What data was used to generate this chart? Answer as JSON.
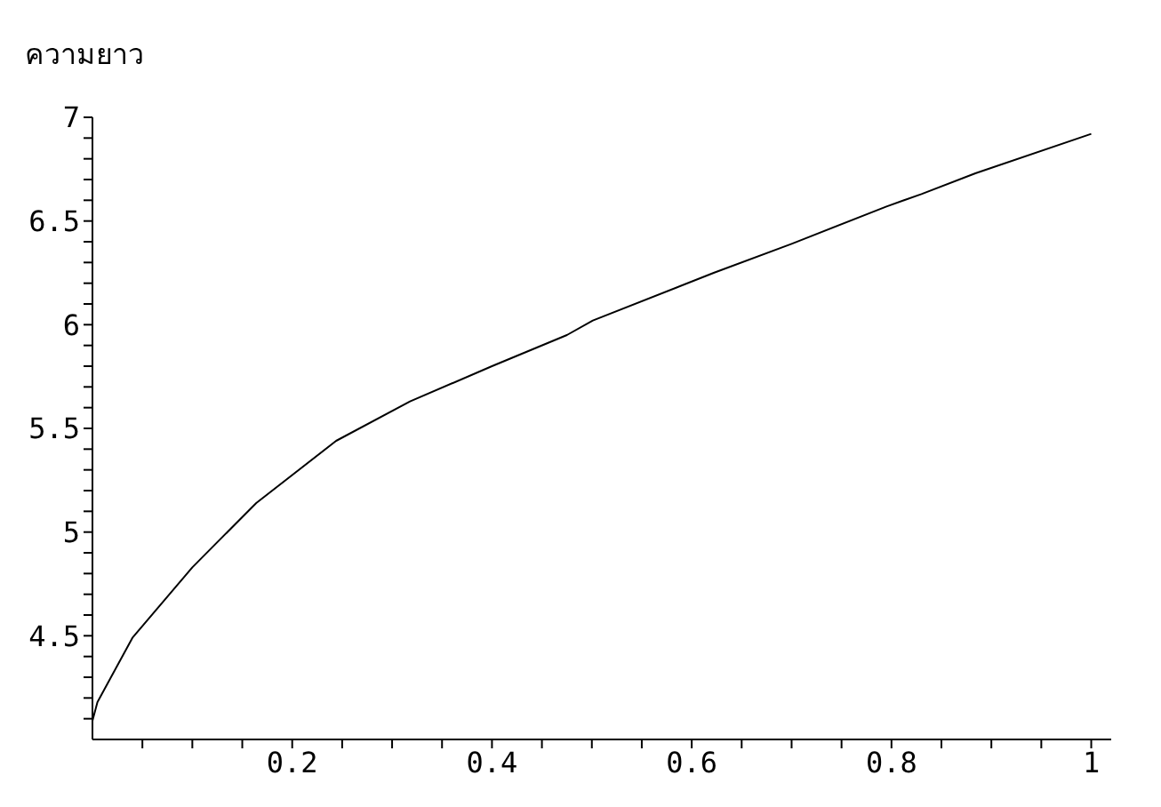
{
  "chart_data": {
    "type": "line",
    "ylabel": "ความยาว",
    "x": [
      0,
      0.005,
      0.04,
      0.1,
      0.164,
      0.244,
      0.318,
      0.4,
      0.475,
      0.501,
      0.622,
      0.7,
      0.795,
      0.83,
      0.884,
      1.0
    ],
    "series": [
      {
        "color": "#000000",
        "values": [
          4.09,
          4.18,
          4.49,
          4.83,
          5.14,
          5.44,
          5.63,
          5.8,
          5.95,
          6.02,
          6.25,
          6.39,
          6.57,
          6.63,
          6.73,
          6.92
        ]
      }
    ],
    "xlim": [
      0,
      1.02
    ],
    "ylim": [
      4,
      7
    ],
    "xticks": [
      {
        "value": 0.05,
        "label": null
      },
      {
        "value": 0.1,
        "label": null
      },
      {
        "value": 0.15,
        "label": null
      },
      0.2,
      {
        "value": 0.25,
        "label": null
      },
      {
        "value": 0.3,
        "label": null
      },
      {
        "value": 0.35,
        "label": null
      },
      0.4,
      {
        "value": 0.45,
        "label": null
      },
      {
        "value": 0.5,
        "label": null
      },
      {
        "value": 0.55,
        "label": null
      },
      0.6,
      {
        "value": 0.65,
        "label": null
      },
      {
        "value": 0.7,
        "label": null
      },
      {
        "value": 0.75,
        "label": null
      },
      0.8,
      {
        "value": 0.85,
        "label": null
      },
      {
        "value": 0.9,
        "label": null
      },
      {
        "value": 0.95,
        "label": null
      },
      1
    ],
    "yticks": [
      {
        "value": 4.1,
        "label": null
      },
      {
        "value": 4.2,
        "label": null
      },
      {
        "value": 4.3,
        "label": null
      },
      {
        "value": 4.4,
        "label": null
      },
      4.5,
      {
        "value": 4.6,
        "label": null
      },
      {
        "value": 4.7,
        "label": null
      },
      {
        "value": 4.8,
        "label": null
      },
      {
        "value": 4.9,
        "label": null
      },
      5,
      {
        "value": 5.1,
        "label": null
      },
      {
        "value": 5.2,
        "label": null
      },
      {
        "value": 5.3,
        "label": null
      },
      {
        "value": 5.4,
        "label": null
      },
      5.5,
      {
        "value": 5.6,
        "label": null
      },
      {
        "value": 5.7,
        "label": null
      },
      {
        "value": 5.8,
        "label": null
      },
      {
        "value": 5.9,
        "label": null
      },
      6,
      {
        "value": 6.1,
        "label": null
      },
      {
        "value": 6.2,
        "label": null
      },
      {
        "value": 6.3,
        "label": null
      },
      {
        "value": 6.4,
        "label": null
      },
      6.5,
      {
        "value": 6.6,
        "label": null
      },
      {
        "value": 6.7,
        "label": null
      },
      {
        "value": 6.8,
        "label": null
      },
      {
        "value": 6.9,
        "label": null
      },
      7
    ],
    "marker": "none",
    "line_style": "solid"
  }
}
